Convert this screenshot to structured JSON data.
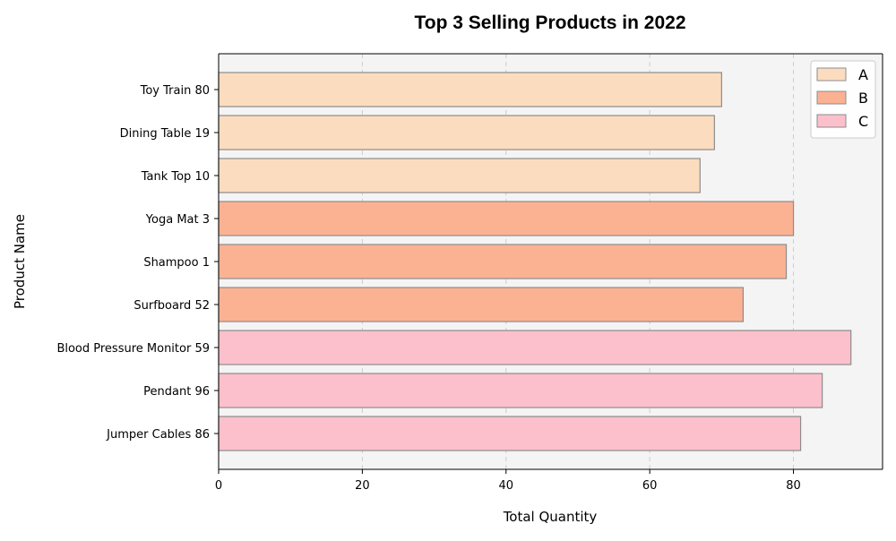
{
  "chart_data": {
    "type": "bar",
    "orientation": "horizontal",
    "title": "Top 3 Selling Products in 2022",
    "xlabel": "Total Quantity",
    "ylabel": "Product Name",
    "xlim": [
      0,
      92.4
    ],
    "xticks": [
      0,
      20,
      40,
      60,
      80
    ],
    "grid": "x-dashed",
    "legend_position": "top-right",
    "plot_background": "#f4f4f4",
    "bar_edge_color": "#8c8c8c",
    "groups": [
      {
        "name": "A",
        "color": "#fcdcbf"
      },
      {
        "name": "B",
        "color": "#fbb293"
      },
      {
        "name": "C",
        "color": "#fbc0cb"
      }
    ],
    "bars": [
      {
        "label": "Toy Train 80",
        "value": 70,
        "group": "A"
      },
      {
        "label": "Dining Table 19",
        "value": 69,
        "group": "A"
      },
      {
        "label": "Tank Top 10",
        "value": 67,
        "group": "A"
      },
      {
        "label": "Yoga Mat 3",
        "value": 80,
        "group": "B"
      },
      {
        "label": "Shampoo 1",
        "value": 79,
        "group": "B"
      },
      {
        "label": "Surfboard 52",
        "value": 73,
        "group": "B"
      },
      {
        "label": "Blood Pressure Monitor 59",
        "value": 88,
        "group": "C"
      },
      {
        "label": "Pendant 96",
        "value": 84,
        "group": "C"
      },
      {
        "label": "Jumper Cables 86",
        "value": 81,
        "group": "C"
      }
    ]
  }
}
